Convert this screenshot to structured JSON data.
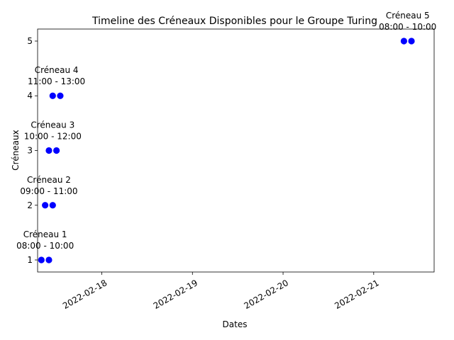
{
  "chart_data": {
    "type": "scatter",
    "title": "Timeline des Créneaux Disponibles pour le Groupe Turing",
    "xlabel": "Dates",
    "ylabel": "Créneaux",
    "x_scale": "date",
    "xlim": [
      "2022-02-17 07:00",
      "2022-02-21 16:00"
    ],
    "ylim": [
      0.78,
      5.22
    ],
    "x_ticks": [
      "2022-02-18",
      "2022-02-19",
      "2022-02-20",
      "2022-02-21"
    ],
    "y_ticks": [
      1,
      2,
      3,
      4,
      5
    ],
    "grid": false,
    "legend": "none",
    "marker_color": "#0000ff",
    "points": [
      {
        "x": "2022-02-17 08:00",
        "y": 1
      },
      {
        "x": "2022-02-17 10:00",
        "y": 1
      },
      {
        "x": "2022-02-17 09:00",
        "y": 2
      },
      {
        "x": "2022-02-17 11:00",
        "y": 2
      },
      {
        "x": "2022-02-17 10:00",
        "y": 3
      },
      {
        "x": "2022-02-17 12:00",
        "y": 3
      },
      {
        "x": "2022-02-17 11:00",
        "y": 4
      },
      {
        "x": "2022-02-17 13:00",
        "y": 4
      },
      {
        "x": "2022-02-21 08:00",
        "y": 5
      },
      {
        "x": "2022-02-21 10:00",
        "y": 5
      }
    ],
    "annotations": [
      {
        "x": "2022-02-17 09:00",
        "y": 1,
        "lines": [
          "Créneau 1",
          "08:00 - 10:00"
        ]
      },
      {
        "x": "2022-02-17 10:00",
        "y": 2,
        "lines": [
          "Créneau 2",
          "09:00 - 11:00"
        ]
      },
      {
        "x": "2022-02-17 11:00",
        "y": 3,
        "lines": [
          "Créneau 3",
          "10:00 - 12:00"
        ]
      },
      {
        "x": "2022-02-17 12:00",
        "y": 4,
        "lines": [
          "Créneau 4",
          "11:00 - 13:00"
        ]
      },
      {
        "x": "2022-02-21 09:00",
        "y": 5,
        "lines": [
          "Créneau 5",
          "08:00 - 10:00"
        ]
      }
    ]
  }
}
